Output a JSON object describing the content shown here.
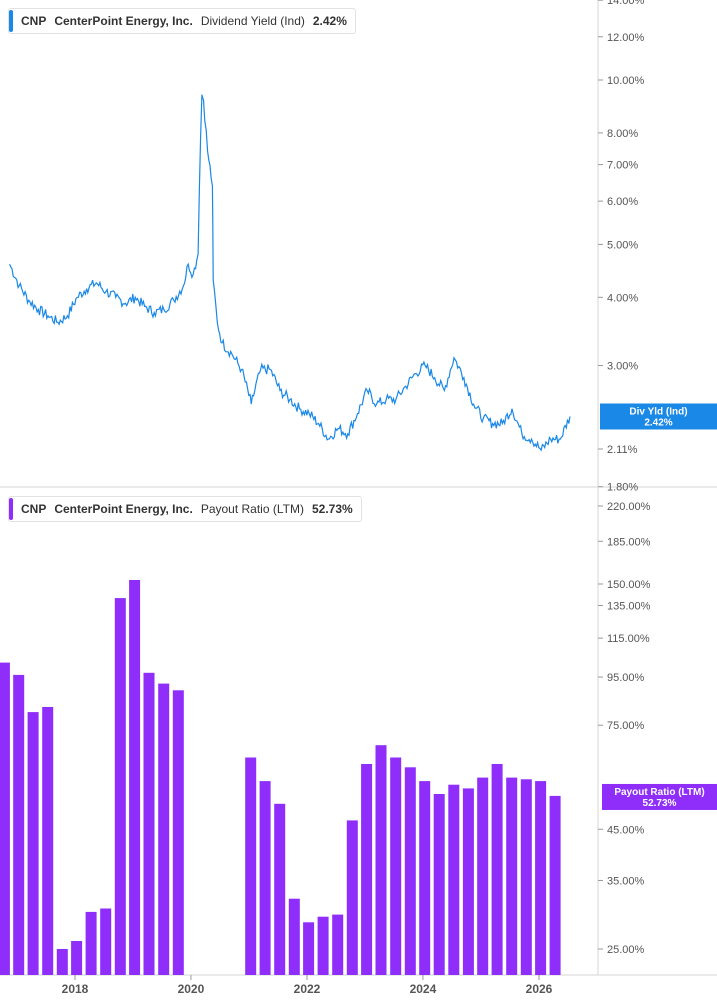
{
  "colors": {
    "yield": "#1a88e6",
    "payout": "#8f2dfa",
    "axis_text": "#555555",
    "grid": "#d6d6d6"
  },
  "legend_top": {
    "ticker": "CNP",
    "company": "CenterPoint Energy, Inc.",
    "metric": "Dividend Yield (Ind)",
    "value": "2.42%"
  },
  "legend_bottom": {
    "ticker": "CNP",
    "company": "CenterPoint Energy, Inc.",
    "metric": "Payout Ratio (LTM)",
    "value": "52.73%"
  },
  "chart_data": [
    {
      "type": "line",
      "series": [
        {
          "name": "Dividend Yield (Ind)"
        }
      ],
      "y_scale": "log",
      "y_ticks": [
        "14.00%",
        "12.00%",
        "10.00%",
        "8.00%",
        "7.00%",
        "6.00%",
        "5.00%",
        "4.00%",
        "3.00%",
        "2.11%",
        "1.80%"
      ],
      "y_tick_values": [
        14,
        12,
        10,
        8,
        7,
        6,
        5,
        4,
        3,
        2.11,
        1.8
      ],
      "ylim": [
        1.8,
        14
      ],
      "last_value_label": {
        "title": "Div Yld (Ind)",
        "value": "2.42%",
        "y": 2.42
      },
      "points": [
        [
          "2016-11",
          4.6
        ],
        [
          "2017-01",
          4.2
        ],
        [
          "2017-03",
          3.95
        ],
        [
          "2017-05",
          3.8
        ],
        [
          "2017-07",
          3.7
        ],
        [
          "2017-09",
          3.6
        ],
        [
          "2017-11",
          3.7
        ],
        [
          "2018-01",
          4.0
        ],
        [
          "2018-03",
          4.15
        ],
        [
          "2018-05",
          4.25
        ],
        [
          "2018-07",
          4.1
        ],
        [
          "2018-09",
          4.0
        ],
        [
          "2018-11",
          3.9
        ],
        [
          "2019-01",
          4.0
        ],
        [
          "2019-03",
          3.85
        ],
        [
          "2019-05",
          3.75
        ],
        [
          "2019-07",
          3.8
        ],
        [
          "2019-09",
          3.95
        ],
        [
          "2019-11",
          4.2
        ],
        [
          "2019-12",
          4.6
        ],
        [
          "2020-01",
          4.4
        ],
        [
          "2020-02",
          4.8
        ],
        [
          "2020-03-10",
          9.4
        ],
        [
          "2020-03-20",
          9.2
        ],
        [
          "2020-04",
          7.4
        ],
        [
          "2020-05",
          6.4
        ],
        [
          "2020-05-20",
          4.3
        ],
        [
          "2020-06",
          3.6
        ],
        [
          "2020-07",
          3.3
        ],
        [
          "2020-09",
          3.15
        ],
        [
          "2020-11",
          2.95
        ],
        [
          "2021-01",
          2.55
        ],
        [
          "2021-03",
          2.95
        ],
        [
          "2021-05",
          2.95
        ],
        [
          "2021-07",
          2.7
        ],
        [
          "2021-09",
          2.6
        ],
        [
          "2021-11",
          2.5
        ],
        [
          "2022-01",
          2.45
        ],
        [
          "2022-03",
          2.35
        ],
        [
          "2022-05",
          2.2
        ],
        [
          "2022-07",
          2.3
        ],
        [
          "2022-09",
          2.25
        ],
        [
          "2022-11",
          2.45
        ],
        [
          "2023-01",
          2.7
        ],
        [
          "2023-03",
          2.55
        ],
        [
          "2023-05",
          2.6
        ],
        [
          "2023-07",
          2.6
        ],
        [
          "2023-09",
          2.75
        ],
        [
          "2023-11",
          2.9
        ],
        [
          "2024-01",
          3.0
        ],
        [
          "2024-03",
          2.85
        ],
        [
          "2024-05",
          2.7
        ],
        [
          "2024-07",
          3.1
        ],
        [
          "2024-09",
          2.85
        ],
        [
          "2024-11",
          2.55
        ],
        [
          "2025-01",
          2.4
        ],
        [
          "2025-03",
          2.35
        ],
        [
          "2025-05",
          2.35
        ],
        [
          "2025-07",
          2.5
        ],
        [
          "2025-09",
          2.25
        ],
        [
          "2025-11",
          2.2
        ],
        [
          "2026-01",
          2.1
        ],
        [
          "2026-03",
          2.2
        ],
        [
          "2026-05",
          2.2
        ],
        [
          "2026-07",
          2.42
        ]
      ]
    },
    {
      "type": "bar",
      "series": [
        {
          "name": "Payout Ratio (LTM)"
        }
      ],
      "y_scale": "log",
      "y_ticks": [
        "220.00%",
        "185.00%",
        "150.00%",
        "135.00%",
        "115.00%",
        "95.00%",
        "75.00%",
        "45.00%",
        "35.00%",
        "25.00%"
      ],
      "y_tick_values": [
        220,
        185,
        150,
        135,
        115,
        95,
        75,
        45,
        35,
        25
      ],
      "ylim": [
        22,
        222
      ],
      "last_value_label": {
        "title": "Payout Ratio (LTM)",
        "value": "52.73%",
        "y": 52.73
      },
      "x_ticks": [
        "2018",
        "2020",
        "2022",
        "2024",
        "2026"
      ],
      "categories": [
        "2016-12-31",
        "2017-03-31",
        "2017-06-30",
        "2017-09-30",
        "2017-12-31",
        "2018-03-31",
        "2018-06-30",
        "2018-09-30",
        "2018-12-31",
        "2019-03-31",
        "2019-06-30",
        "2019-09-30",
        "2019-12-31",
        "2021-03-31",
        "2021-06-30",
        "2021-09-30",
        "2021-12-31",
        "2022-03-31",
        "2022-06-30",
        "2022-09-30",
        "2022-12-31",
        "2023-03-31",
        "2023-06-30",
        "2023-09-30",
        "2023-12-31",
        "2024-03-31",
        "2024-06-30",
        "2024-09-30",
        "2024-12-31",
        "2025-03-31",
        "2025-06-30",
        "2025-09-30",
        "2025-12-31",
        "2026-03-31",
        "2026-06-30"
      ],
      "values": [
        102,
        96,
        80,
        82,
        25,
        26,
        30,
        30.5,
        140,
        153,
        97,
        92,
        89,
        64,
        57,
        51,
        32,
        28.5,
        29.3,
        29.6,
        47,
        62,
        68,
        64,
        61,
        57,
        53.5,
        56,
        55,
        58,
        62,
        58,
        57.5,
        57,
        53
      ]
    }
  ]
}
